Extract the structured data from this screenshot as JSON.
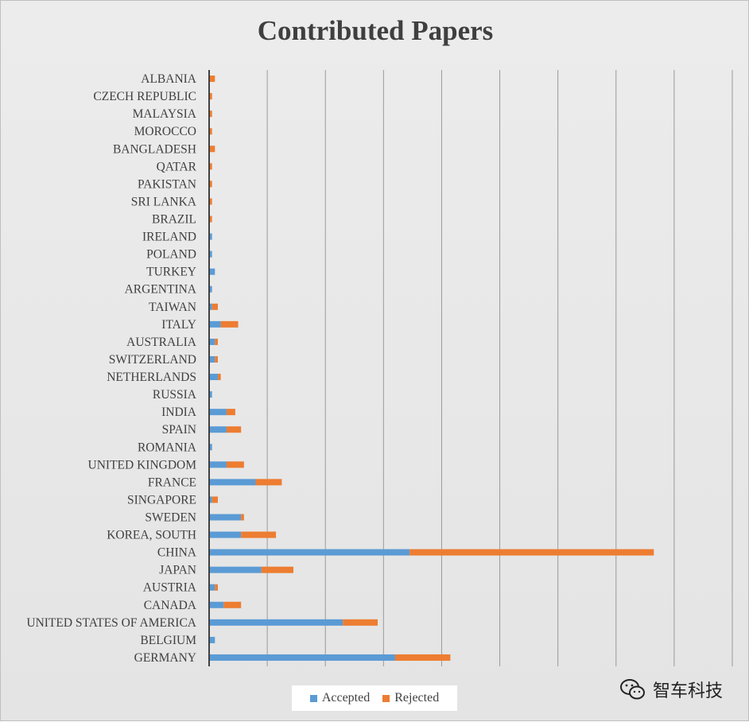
{
  "chart_data": {
    "type": "bar",
    "orientation": "horizontal",
    "stacked": true,
    "title": "Contributed Papers",
    "categories": [
      "ALBANIA",
      "CZECH REPUBLIC",
      "MALAYSIA",
      "MOROCCO",
      "BANGLADESH",
      "QATAR",
      "PAKISTAN",
      "SRI LANKA",
      "BRAZIL",
      "IRELAND",
      "POLAND",
      "TURKEY",
      "ARGENTINA",
      "TAIWAN",
      "ITALY",
      "AUSTRALIA",
      "SWITZERLAND",
      "NETHERLANDS",
      "RUSSIA",
      "INDIA",
      "SPAIN",
      "ROMANIA",
      "UNITED KINGDOM",
      "FRANCE",
      "SINGAPORE",
      "SWEDEN",
      "KOREA, SOUTH",
      "CHINA",
      "JAPAN",
      "AUSTRIA",
      "CANADA",
      "UNITED STATES OF AMERICA",
      "BELGIUM",
      "GERMANY"
    ],
    "series": [
      {
        "name": "Accepted",
        "color": "#5b9bd5",
        "values": [
          0,
          0,
          0,
          0,
          0,
          0,
          0,
          0,
          0,
          1,
          1,
          2,
          1,
          1,
          4,
          2,
          2,
          3,
          1,
          6,
          6,
          1,
          6,
          16,
          1,
          11,
          11,
          69,
          18,
          2,
          5,
          46,
          2,
          64
        ]
      },
      {
        "name": "Rejected",
        "color": "#ed7d31",
        "values": [
          2,
          1,
          1,
          1,
          2,
          1,
          1,
          1,
          1,
          0,
          0,
          0,
          0,
          2,
          6,
          1,
          1,
          1,
          0,
          3,
          5,
          0,
          6,
          9,
          2,
          1,
          12,
          84,
          11,
          1,
          6,
          12,
          0,
          19
        ]
      }
    ],
    "xlim": [
      0,
      180
    ],
    "x_gridlines": true,
    "legend_position": "bottom"
  },
  "watermark": {
    "text": "智车科技",
    "icon": "wechat-icon"
  }
}
